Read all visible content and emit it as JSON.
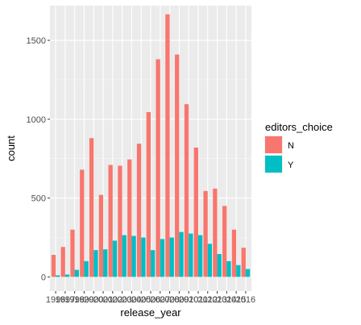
{
  "chart_data": {
    "type": "bar",
    "bar_mode": "dodge",
    "xlabel": "release_year",
    "ylabel": "count",
    "categories": [
      "1996",
      "1997",
      "1998",
      "1999",
      "2000",
      "2001",
      "2002",
      "2003",
      "2004",
      "2005",
      "2006",
      "2007",
      "2008",
      "2009",
      "2010",
      "2011",
      "2012",
      "2013",
      "2014",
      "2015",
      "2016"
    ],
    "x_tick_labels": [
      "1996",
      "1997",
      "1998",
      "1999",
      "2000",
      "2001",
      "2002",
      "2003",
      "2004",
      "2005",
      "2006",
      "2007",
      "2008",
      "2009",
      "2010",
      "2011",
      "2012",
      "2013",
      "2014",
      "2015",
      "2016"
    ],
    "y_ticks": [
      0,
      500,
      1000,
      1500
    ],
    "ylim": [
      -90,
      1720
    ],
    "grid": true,
    "legend": {
      "title": "editors_choice",
      "position": "right"
    },
    "series": [
      {
        "name": "N",
        "color": "#F8766D",
        "values": [
          140,
          190,
          300,
          680,
          880,
          520,
          710,
          705,
          745,
          845,
          1045,
          1380,
          1665,
          1410,
          1095,
          820,
          545,
          560,
          450,
          300,
          185
        ]
      },
      {
        "name": "Y",
        "color": "#00BFC4",
        "values": [
          10,
          15,
          45,
          100,
          170,
          175,
          230,
          265,
          260,
          250,
          170,
          240,
          250,
          285,
          275,
          265,
          210,
          145,
          100,
          75,
          50
        ]
      }
    ]
  }
}
